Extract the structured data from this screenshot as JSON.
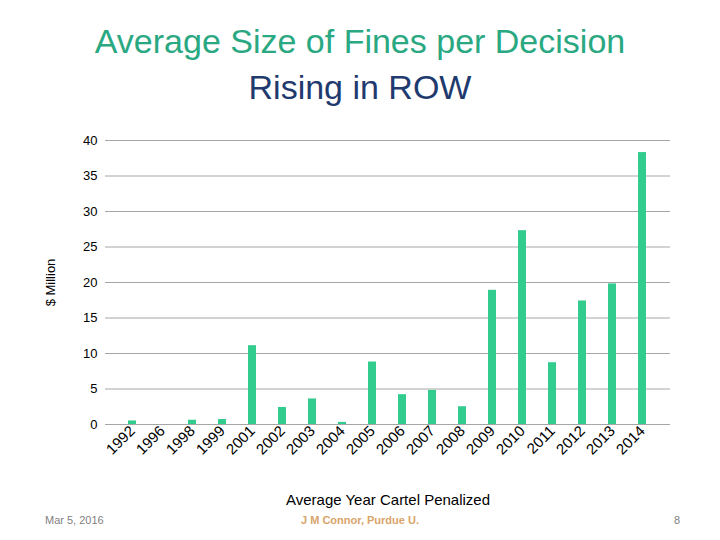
{
  "chart_data": {
    "type": "bar",
    "title": "Average Size of Fines per Decision",
    "subtitle": "Rising in ROW",
    "y_label": "$ Million",
    "x_label": "Average Year Cartel Penalized",
    "categories": [
      "1992",
      "1996",
      "1998",
      "1999",
      "2001",
      "2002",
      "2003",
      "2004",
      "2005",
      "2006",
      "2007",
      "2008",
      "2009",
      "2010",
      "2011",
      "2012",
      "2013",
      "2014"
    ],
    "values": [
      0.5,
      0,
      0.6,
      0.7,
      11.1,
      2.4,
      3.6,
      0.3,
      8.8,
      4.2,
      4.8,
      2.5,
      18.9,
      27.3,
      8.7,
      17.4,
      19.8,
      38.3
    ],
    "color": "#33cc8f",
    "ylim": [
      0,
      40
    ],
    "yticks": [
      0,
      5,
      10,
      15,
      20,
      25,
      30,
      35,
      40
    ],
    "grid": true,
    "annotations": [
      "Mar 5, 2016",
      "J M Connor, Purdue U.",
      "8"
    ]
  }
}
